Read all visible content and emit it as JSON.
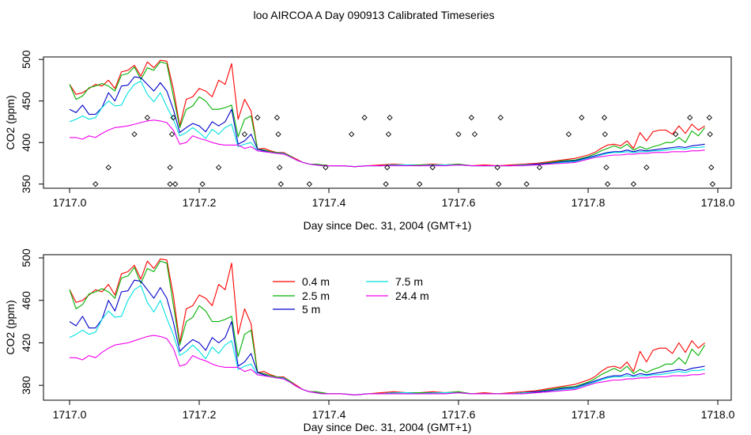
{
  "title": "loo AIRCOA A  Day 090913  Calibrated Timeseries",
  "chart_data": [
    {
      "type": "line",
      "xlabel": "Day since Dec. 31, 2004 (GMT+1)",
      "ylabel": "CO2 (ppm)",
      "xlim": [
        1717.0,
        1718.0
      ],
      "ylim": [
        345,
        503
      ],
      "x_ticks": [
        1717.0,
        1717.2,
        1717.4,
        1717.6,
        1717.8,
        1718.0
      ],
      "x_tick_labels": [
        "1717.0",
        "1717.2",
        "1717.4",
        "1717.6",
        "1717.8",
        "1718.0"
      ],
      "y_ticks": [
        350,
        400,
        450,
        500
      ],
      "y_tick_labels": [
        "350",
        "400",
        "450",
        "500"
      ],
      "x": [
        1717.0,
        1717.01,
        1717.02,
        1717.03,
        1717.04,
        1717.05,
        1717.06,
        1717.07,
        1717.08,
        1717.09,
        1717.1,
        1717.11,
        1717.12,
        1717.13,
        1717.14,
        1717.15,
        1717.16,
        1717.17,
        1717.18,
        1717.19,
        1717.2,
        1717.21,
        1717.22,
        1717.23,
        1717.24,
        1717.25,
        1717.26,
        1717.27,
        1717.28,
        1717.29,
        1717.3,
        1717.31,
        1717.32,
        1717.33,
        1717.34,
        1717.35,
        1717.36,
        1717.37,
        1717.38,
        1717.39,
        1717.4,
        1717.42,
        1717.44,
        1717.46,
        1717.48,
        1717.5,
        1717.52,
        1717.54,
        1717.56,
        1717.58,
        1717.6,
        1717.62,
        1717.64,
        1717.66,
        1717.68,
        1717.7,
        1717.72,
        1717.74,
        1717.76,
        1717.78,
        1717.79,
        1717.8,
        1717.81,
        1717.82,
        1717.83,
        1717.84,
        1717.85,
        1717.86,
        1717.87,
        1717.88,
        1717.89,
        1717.9,
        1717.91,
        1717.92,
        1717.93,
        1717.94,
        1717.95,
        1717.96,
        1717.97,
        1717.98
      ],
      "series": [
        {
          "name": "0.4 m",
          "color": "#ff0000",
          "values": [
            470,
            458,
            460,
            465,
            470,
            468,
            475,
            465,
            485,
            487,
            493,
            480,
            497,
            490,
            499,
            498,
            465,
            420,
            452,
            455,
            465,
            462,
            455,
            475,
            470,
            495,
            428,
            452,
            438,
            392,
            393,
            390,
            388,
            388,
            384,
            380,
            376,
            374,
            374,
            373,
            372,
            372,
            371,
            372,
            373,
            374,
            373,
            373,
            374,
            373,
            374,
            372,
            373,
            372,
            373,
            374,
            375,
            377,
            379,
            381,
            383,
            385,
            388,
            393,
            397,
            398,
            396,
            402,
            393,
            412,
            402,
            413,
            415,
            415,
            410,
            420,
            411,
            422,
            415,
            420
          ]
        },
        {
          "name": "2.5 m",
          "color": "#00b000",
          "values": [
            470,
            452,
            456,
            466,
            468,
            471,
            468,
            462,
            481,
            483,
            491,
            476,
            490,
            487,
            497,
            495,
            456,
            418,
            440,
            444,
            455,
            450,
            440,
            440,
            442,
            445,
            407,
            428,
            432,
            392,
            391,
            389,
            388,
            387,
            384,
            379,
            376,
            374,
            374,
            373,
            372,
            372,
            371,
            372,
            372,
            373,
            373,
            373,
            373,
            373,
            374,
            372,
            372,
            372,
            372,
            373,
            374,
            376,
            378,
            379,
            381,
            383,
            386,
            390,
            393,
            396,
            393,
            398,
            391,
            395,
            392,
            395,
            397,
            400,
            400,
            406,
            400,
            414,
            408,
            418
          ]
        },
        {
          "name": "5 m",
          "color": "#0000cc",
          "values": [
            440,
            436,
            445,
            434,
            434,
            442,
            460,
            450,
            468,
            469,
            479,
            478,
            470,
            462,
            472,
            462,
            440,
            412,
            418,
            423,
            420,
            413,
            425,
            420,
            425,
            440,
            398,
            402,
            410,
            392,
            390,
            388,
            387,
            387,
            383,
            379,
            376,
            374,
            373,
            372,
            372,
            372,
            371,
            372,
            372,
            373,
            373,
            372,
            373,
            373,
            373,
            372,
            372,
            372,
            372,
            373,
            374,
            375,
            377,
            378,
            380,
            382,
            384,
            386,
            388,
            389,
            389,
            391,
            389,
            391,
            390,
            391,
            392,
            393,
            394,
            395,
            394,
            396,
            397,
            398
          ]
        },
        {
          "name": "7.5 m",
          "color": "#00e0e0",
          "values": [
            425,
            428,
            432,
            428,
            430,
            442,
            450,
            444,
            445,
            460,
            470,
            474,
            458,
            449,
            460,
            443,
            428,
            408,
            412,
            418,
            412,
            405,
            416,
            410,
            418,
            422,
            395,
            398,
            400,
            390,
            389,
            388,
            387,
            387,
            383,
            379,
            376,
            374,
            373,
            372,
            372,
            372,
            371,
            372,
            372,
            373,
            373,
            372,
            373,
            373,
            373,
            372,
            372,
            372,
            372,
            373,
            373,
            374,
            376,
            377,
            379,
            381,
            383,
            385,
            387,
            388,
            388,
            389,
            388,
            389,
            389,
            390,
            390,
            391,
            392,
            393,
            392,
            394,
            394,
            395
          ]
        },
        {
          "name": "24.4 m",
          "color": "#ee00ee",
          "values": [
            406,
            406,
            404,
            408,
            406,
            411,
            415,
            418,
            419,
            420,
            422,
            424,
            426,
            427,
            426,
            424,
            415,
            398,
            400,
            408,
            405,
            403,
            400,
            398,
            397,
            397,
            397,
            393,
            395,
            390,
            389,
            388,
            387,
            386,
            383,
            379,
            376,
            374,
            373,
            372,
            372,
            372,
            371,
            372,
            372,
            372,
            372,
            372,
            372,
            372,
            373,
            372,
            372,
            372,
            372,
            372,
            373,
            374,
            375,
            376,
            378,
            380,
            382,
            383,
            384,
            385,
            385,
            386,
            386,
            387,
            387,
            388,
            388,
            388,
            389,
            389,
            389,
            390,
            390,
            391
          ]
        }
      ],
      "points": {
        "marker": "open-diamond",
        "x": [
          1717.04,
          1717.06,
          1717.1,
          1717.12,
          1717.155,
          1717.155,
          1717.158,
          1717.16,
          1717.163,
          1717.205,
          1717.23,
          1717.27,
          1717.29,
          1717.32,
          1717.322,
          1717.324,
          1717.326,
          1717.37,
          1717.395,
          1717.435,
          1717.455,
          1717.488,
          1717.49,
          1717.492,
          1717.494,
          1717.54,
          1717.56,
          1717.6,
          1717.62,
          1717.625,
          1717.66,
          1717.662,
          1717.665,
          1717.705,
          1717.725,
          1717.77,
          1717.79,
          1717.825,
          1717.826,
          1717.828,
          1717.83,
          1717.87,
          1717.89,
          1717.935,
          1717.957,
          1717.987,
          1717.988,
          1717.99,
          1717.992
        ],
        "y": [
          350,
          370,
          410,
          430,
          350,
          370,
          410,
          430,
          350,
          350,
          370,
          410,
          430,
          430,
          410,
          370,
          350,
          350,
          370,
          410,
          430,
          350,
          370,
          410,
          430,
          350,
          370,
          410,
          430,
          410,
          370,
          350,
          430,
          350,
          370,
          410,
          430,
          430,
          410,
          370,
          350,
          350,
          370,
          410,
          430,
          430,
          410,
          370,
          350
        ]
      },
      "grid": false
    },
    {
      "type": "line",
      "xlabel": "Day since Dec. 31, 2004 (GMT+1)",
      "ylabel": "CO2 (ppm)",
      "xlim": [
        1717.0,
        1718.0
      ],
      "ylim": [
        366,
        503
      ],
      "x_ticks": [
        1717.0,
        1717.2,
        1717.4,
        1717.6,
        1717.8,
        1718.0
      ],
      "x_tick_labels": [
        "1717.0",
        "1717.2",
        "1717.4",
        "1717.6",
        "1717.8",
        "1718.0"
      ],
      "y_ticks": [
        380,
        420,
        460,
        500
      ],
      "y_tick_labels": [
        "380",
        "420",
        "460",
        "500"
      ],
      "legend": {
        "position": "top-center",
        "entries": [
          "0.4 m",
          "2.5 m",
          "5 m",
          "7.5 m",
          "24.4 m"
        ]
      },
      "uses_series_of": 0,
      "grid": false
    }
  ]
}
